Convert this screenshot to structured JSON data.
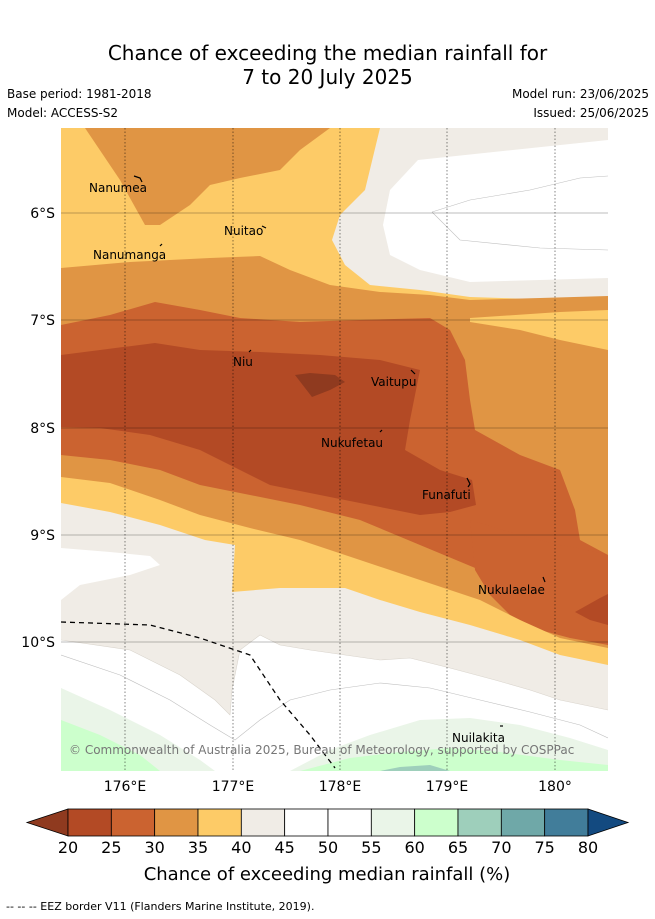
{
  "title_line1": "Chance of exceeding the median rainfall for",
  "title_line2": "7 to 20 July 2025",
  "base_period": "Base period: 1981-2018",
  "model": "Model: ACCESS-S2",
  "model_run": "Model run: 23/06/2025",
  "issued": "Issued: 25/06/2025",
  "copyright": "© Commonwealth of Australia 2025, Bureau of Meteorology, supported by COSPPac",
  "map": {
    "lat_ticks": [
      "6°S",
      "7°S",
      "8°S",
      "9°S",
      "10°S"
    ],
    "lon_ticks": [
      "176°E",
      "177°E",
      "178°E",
      "179°E",
      "180°"
    ],
    "places": [
      {
        "name": "Nanumea"
      },
      {
        "name": "Nuitao"
      },
      {
        "name": "Nanumanga"
      },
      {
        "name": "Niu"
      },
      {
        "name": "Vaitupu"
      },
      {
        "name": "Nukufetau"
      },
      {
        "name": "Funafuti"
      },
      {
        "name": "Nukulaelae"
      },
      {
        "name": "Nuilakita"
      }
    ]
  },
  "colorbar": {
    "title": "Chance of exceeding median rainfall (%)",
    "ticks": [
      "20",
      "25",
      "30",
      "35",
      "40",
      "45",
      "50",
      "55",
      "60",
      "65",
      "70",
      "75",
      "80"
    ],
    "colors": {
      "below20": "#8f3a1f",
      "20-25": "#b34a25",
      "25-30": "#cb6330",
      "30-35": "#e09544",
      "35-40": "#fdcb67",
      "40-45": "#f0ece6",
      "45-50": "#ffffff",
      "50-55": "#ffffff",
      "55-60": "#eaf5e8",
      "60-65": "#ccffcc",
      "65-70": "#9ecfbb",
      "70-75": "#6fa8a8",
      "75-80": "#417d9a",
      "above80": "#134a80"
    }
  },
  "footnote": "-- -- -- EEZ border V11 (Flanders Marine Institute, 2019)."
}
